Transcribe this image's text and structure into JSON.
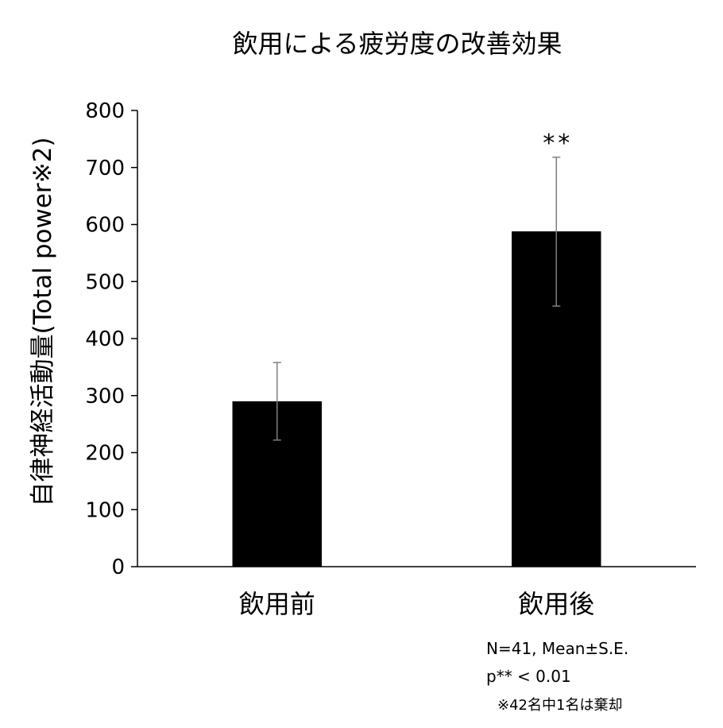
{
  "chart_data": {
    "type": "bar",
    "title": "飲用による疲労度の改善効果",
    "ylabel": "自律神経活動量(Total power※2)",
    "xlabel": "",
    "categories": [
      "飲用前",
      "飲用後"
    ],
    "values": [
      290,
      588
    ],
    "error": [
      [
        222,
        358
      ],
      [
        457,
        718
      ]
    ],
    "significance": [
      "",
      "**"
    ],
    "ylim": [
      0,
      800
    ],
    "yticks": [
      0,
      100,
      200,
      300,
      400,
      500,
      600,
      700,
      800
    ],
    "grid": false,
    "bar_color": "#000000",
    "notes": [
      "N=41, Mean±S.E.",
      "p** < 0.01",
      "※42名中1名は棄却"
    ]
  }
}
